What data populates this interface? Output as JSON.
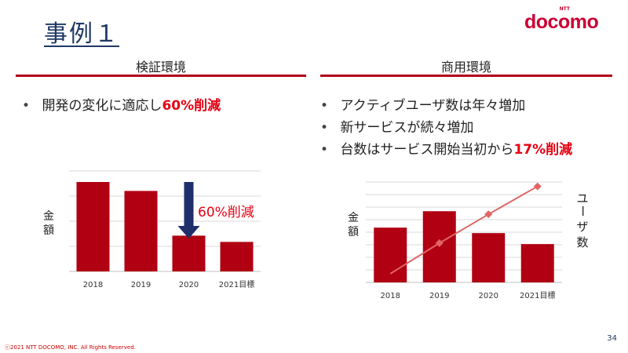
{
  "page": {
    "title": "事例１",
    "logo": {
      "small": "NTT",
      "text": "docomo"
    },
    "footer": "ⓒ2021  NTT DOCOMO, INC. All Rights Reserved.",
    "page_number": "34",
    "colors": {
      "accent": "#b00018",
      "title": "#1f3864",
      "highlight": "#e60012",
      "line": "#e06666"
    }
  },
  "left": {
    "heading": "検証環境",
    "bullets": [
      {
        "text": "開発の変化に適応し",
        "highlight": "60%削減"
      }
    ]
  },
  "right": {
    "heading": "商用環境",
    "bullets": [
      {
        "text": "アクティブユーザ数は年々増加",
        "highlight": ""
      },
      {
        "text": "新サービスが続々増加",
        "highlight": ""
      },
      {
        "text": "台数はサービス開始当初から",
        "highlight": "17%削減"
      }
    ]
  },
  "chart_data": [
    {
      "type": "bar",
      "categories": [
        "2018",
        "2019",
        "2020",
        "2021目標"
      ],
      "values": [
        100,
        90,
        40,
        33
      ],
      "ylabel": "金額",
      "ylim": [
        0,
        100
      ],
      "grid": true,
      "annotation": {
        "text": "60%削減",
        "target_category": "2020",
        "arrow_color": "#1f2f6b",
        "text_color": "#e60012"
      }
    },
    {
      "type": "bar",
      "categories": [
        "2018",
        "2019",
        "2020",
        "2021目標"
      ],
      "series": [
        {
          "values": [
            60,
            78,
            54,
            42
          ]
        }
      ],
      "line_series": [
        {
          "values": [
            10,
            45,
            78,
            110
          ]
        }
      ],
      "ylabel": "金額",
      "y2label": "ユーザ数",
      "ylim": [
        0,
        110
      ],
      "y2lim": [
        0,
        115
      ],
      "grid": true
    }
  ]
}
